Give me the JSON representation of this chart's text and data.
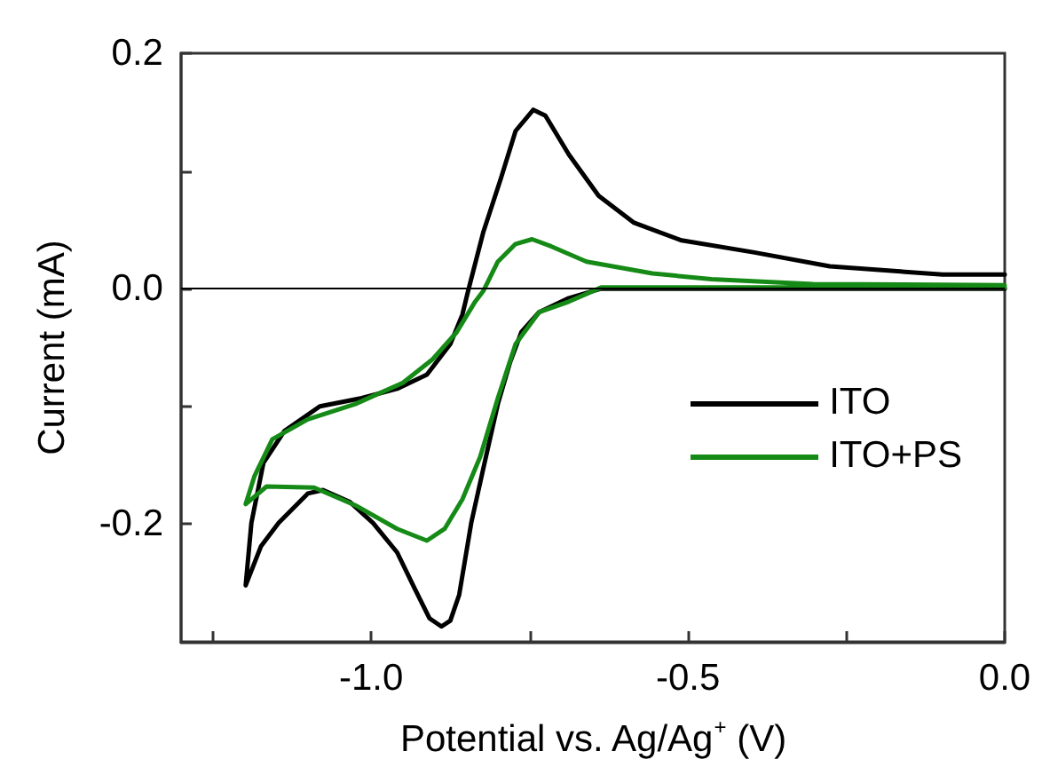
{
  "chart_data": {
    "type": "line",
    "xlabel": "Potential vs. Ag/Ag$^{+}$ (V)",
    "ylabel": "Current (mA)",
    "xlim": [
      -1.3,
      0.0
    ],
    "xticks": [
      {
        "value": -1.25,
        "label": null
      },
      {
        "value": -1.0,
        "label": "-1.0"
      },
      {
        "value": -0.75,
        "label": null
      },
      {
        "value": -0.5,
        "label": "-0.5"
      },
      {
        "value": -0.25,
        "label": null
      },
      {
        "value": 0.0,
        "label": "0.0"
      }
    ],
    "ylim": [
      -0.3,
      0.2
    ],
    "yticks": [
      {
        "value": -0.2,
        "label": "-0.2"
      },
      {
        "value": -0.1,
        "label": null
      },
      {
        "value": 0.0,
        "label": "0.0"
      },
      {
        "value": 0.1,
        "label": null
      },
      {
        "value": 0.2,
        "label": "0.2"
      }
    ],
    "grid": false,
    "legend": "right",
    "marker": "none",
    "line_style": "solid",
    "ref_lines": [
      {
        "axis": "y",
        "value": 0,
        "label": null,
        "color": "#000000"
      }
    ],
    "series": [
      {
        "name": "ITO",
        "color": "#000000",
        "x": [
          0.0,
          -0.3,
          -0.637,
          -0.688,
          -0.735,
          -0.763,
          -0.781,
          -0.8,
          -0.821,
          -0.842,
          -0.861,
          -0.875,
          -0.889,
          -0.908,
          -0.931,
          -0.959,
          -0.997,
          -1.034,
          -1.076,
          -1.1,
          -1.146,
          -1.174,
          -1.198,
          -1.189,
          -1.17,
          -1.137,
          -1.081,
          -1.015,
          -0.959,
          -0.912,
          -0.875,
          -0.856,
          -0.847,
          -0.823,
          -0.795,
          -0.772,
          -0.744,
          -0.725,
          -0.688,
          -0.641,
          -0.585,
          -0.51,
          -0.397,
          -0.276,
          -0.098,
          0.0
        ],
        "values": [
          0.0,
          0.0,
          0.0,
          -0.008,
          -0.02,
          -0.037,
          -0.063,
          -0.098,
          -0.148,
          -0.199,
          -0.26,
          -0.282,
          -0.287,
          -0.28,
          -0.255,
          -0.224,
          -0.199,
          -0.181,
          -0.171,
          -0.174,
          -0.199,
          -0.219,
          -0.252,
          -0.199,
          -0.148,
          -0.121,
          -0.1,
          -0.093,
          -0.085,
          -0.073,
          -0.047,
          -0.022,
          -0.002,
          0.048,
          0.094,
          0.134,
          0.152,
          0.147,
          0.114,
          0.079,
          0.056,
          0.041,
          0.031,
          0.019,
          0.012,
          0.012
        ]
      },
      {
        "name": "ITO+PS",
        "color": "#168a16",
        "x": [
          0.0,
          -0.3,
          -0.637,
          -0.688,
          -0.735,
          -0.772,
          -0.8,
          -0.828,
          -0.856,
          -0.884,
          -0.912,
          -0.959,
          -1.025,
          -1.09,
          -1.165,
          -1.198,
          -1.184,
          -1.156,
          -1.1,
          -1.025,
          -0.95,
          -0.903,
          -0.865,
          -0.837,
          -0.823,
          -0.8,
          -0.772,
          -0.746,
          -0.716,
          -0.66,
          -0.556,
          -0.463,
          -0.303,
          0.0
        ],
        "values": [
          0.001,
          0.001,
          0.001,
          -0.011,
          -0.02,
          -0.047,
          -0.093,
          -0.143,
          -0.179,
          -0.204,
          -0.214,
          -0.204,
          -0.184,
          -0.169,
          -0.168,
          -0.183,
          -0.159,
          -0.128,
          -0.111,
          -0.098,
          -0.08,
          -0.06,
          -0.037,
          -0.012,
          -0.002,
          0.023,
          0.038,
          0.042,
          0.036,
          0.023,
          0.013,
          0.008,
          0.004,
          0.003
        ]
      }
    ]
  }
}
